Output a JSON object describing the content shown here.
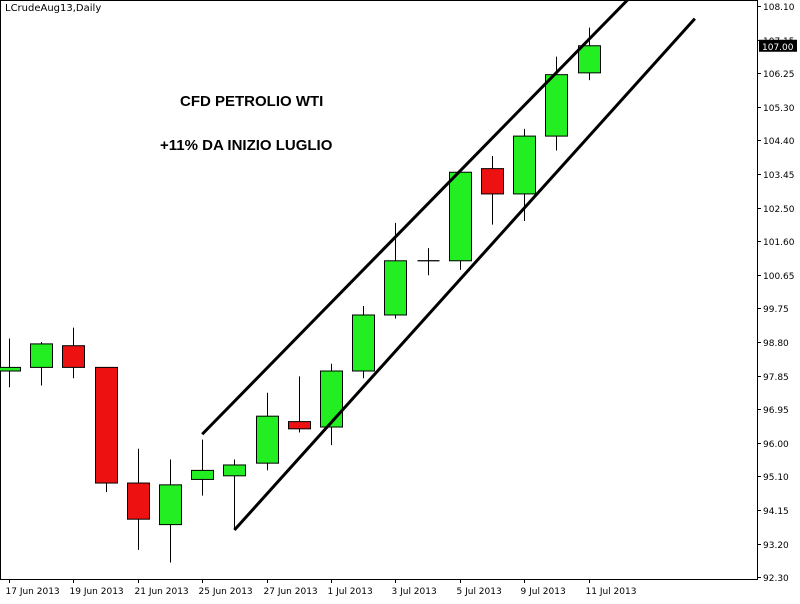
{
  "symbol_label": "LCrudeAug13,Daily",
  "annotations": {
    "line1": "CFD PETROLIO WTI",
    "line2": "+11% DA INIZIO LUGLIO"
  },
  "colors": {
    "bull": "#22ee22",
    "bear": "#ee1111",
    "outline": "#000000",
    "price_tag_bg": "#000000",
    "price_tag_fg": "#ffffff",
    "background": "#ffffff"
  },
  "chart_data": {
    "type": "candlestick",
    "title": "",
    "ylim": [
      92.3,
      108.1
    ],
    "y_ticks": [
      "108.10",
      "107.15",
      "106.25",
      "105.30",
      "104.40",
      "103.45",
      "102.50",
      "101.60",
      "100.65",
      "99.75",
      "98.80",
      "97.85",
      "96.95",
      "96.00",
      "95.10",
      "94.15",
      "93.20",
      "92.30"
    ],
    "current_price": "107.00",
    "x_tick_labels": [
      "17 Jun 2013",
      "19 Jun 2013",
      "21 Jun 2013",
      "25 Jun 2013",
      "27 Jun 2013",
      "1 Jul 2013",
      "3 Jul 2013",
      "5 Jul 2013",
      "9 Jul 2013",
      "11 Jul 2013"
    ],
    "candles": [
      {
        "open": 98.0,
        "high": 98.9,
        "low": 97.55,
        "close": 98.1
      },
      {
        "open": 98.1,
        "high": 98.8,
        "low": 97.6,
        "close": 98.75
      },
      {
        "open": 98.7,
        "high": 99.2,
        "low": 97.8,
        "close": 98.1
      },
      {
        "open": 98.1,
        "high": 98.1,
        "low": 94.65,
        "close": 94.9
      },
      {
        "open": 94.9,
        "high": 95.85,
        "low": 93.05,
        "close": 93.9
      },
      {
        "open": 93.75,
        "high": 95.55,
        "low": 92.7,
        "close": 94.85
      },
      {
        "open": 95.0,
        "high": 96.1,
        "low": 94.55,
        "close": 95.25
      },
      {
        "open": 95.1,
        "high": 95.55,
        "low": 93.6,
        "close": 95.4
      },
      {
        "open": 95.45,
        "high": 97.4,
        "low": 95.25,
        "close": 96.75
      },
      {
        "open": 96.6,
        "high": 97.85,
        "low": 96.3,
        "close": 96.4
      },
      {
        "open": 96.45,
        "high": 98.2,
        "low": 95.95,
        "close": 98.0
      },
      {
        "open": 98.0,
        "high": 99.8,
        "low": 97.8,
        "close": 99.55
      },
      {
        "open": 99.55,
        "high": 102.1,
        "low": 99.45,
        "close": 101.05
      },
      {
        "open": 101.05,
        "high": 101.4,
        "low": 100.65,
        "close": 101.05
      },
      {
        "open": 101.05,
        "high": 103.5,
        "low": 100.8,
        "close": 103.5
      },
      {
        "open": 103.6,
        "high": 103.95,
        "low": 102.05,
        "close": 102.9
      },
      {
        "open": 102.9,
        "high": 104.7,
        "low": 102.15,
        "close": 104.5
      },
      {
        "open": 104.5,
        "high": 106.7,
        "low": 104.1,
        "close": 106.2
      },
      {
        "open": 106.25,
        "high": 107.5,
        "low": 106.05,
        "close": 107.0
      }
    ],
    "trend_lines": [
      {
        "x1": 6.0,
        "y1": 96.25,
        "x2": 19.3,
        "y2": 108.35
      },
      {
        "x1": 7.0,
        "y1": 93.6,
        "x2": 21.3,
        "y2": 107.75
      }
    ]
  }
}
